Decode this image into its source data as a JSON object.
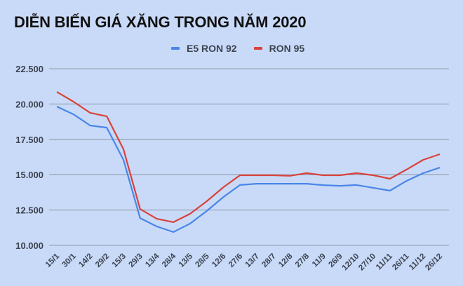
{
  "chart_data": {
    "type": "line",
    "title": "DIỄN BIẾN GIÁ XĂNG TRONG NĂM 2020",
    "xlabel": "",
    "ylabel": "",
    "ylim": [
      10000,
      22500
    ],
    "yticks": [
      10000,
      12500,
      15000,
      17500,
      20000,
      22500
    ],
    "ytick_labels": [
      "10.000",
      "12.500",
      "15.000",
      "17.500",
      "20.000",
      "22.500"
    ],
    "grid": true,
    "legend_position": "top",
    "categories": [
      "15/1",
      "30/1",
      "14/2",
      "29/2",
      "15/3",
      "29/3",
      "13/4",
      "28/4",
      "13/5",
      "28/5",
      "12/6",
      "27/6",
      "13/7",
      "28/7",
      "12/8",
      "27/8",
      "11/9",
      "26/9",
      "12/10",
      "27/10",
      "11/11",
      "26/11",
      "11/12",
      "26/12"
    ],
    "series": [
      {
        "name": "E5 RON 92",
        "color": "#4a86e8",
        "values": [
          19820,
          19270,
          18480,
          18330,
          16050,
          11930,
          11340,
          10940,
          11540,
          12430,
          13420,
          14270,
          14360,
          14360,
          14360,
          14360,
          14260,
          14210,
          14270,
          14070,
          13870,
          14560,
          15110,
          15500
        ]
      },
      {
        "name": "RON 95",
        "color": "#d8433a",
        "values": [
          20860,
          20170,
          19380,
          19130,
          16800,
          12570,
          11880,
          11640,
          12230,
          13120,
          14110,
          14960,
          14960,
          14960,
          14920,
          15110,
          14960,
          14960,
          15110,
          14960,
          14710,
          15360,
          16050,
          16450
        ]
      }
    ]
  },
  "legend": [
    {
      "label": "E5 RON 92",
      "color": "#4a86e8"
    },
    {
      "label": "RON 95",
      "color": "#d8433a"
    }
  ],
  "colors": {
    "background": "#c9daf8",
    "grid": "#9aa6b8",
    "text": "#3c4350"
  }
}
